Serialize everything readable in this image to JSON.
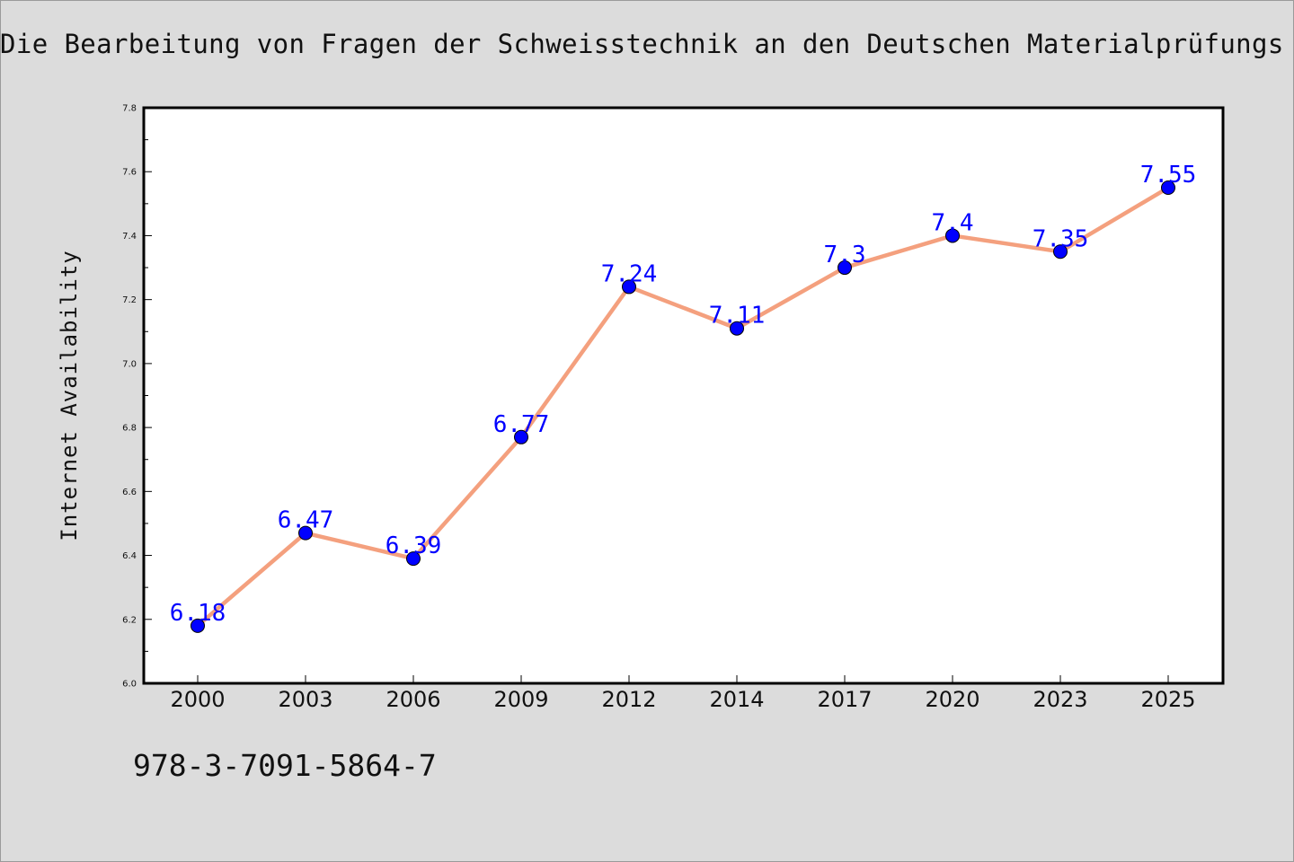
{
  "chart_data": {
    "type": "line",
    "title": "Die Bearbeitung von Fragen der Schweisstechnik an den Deutschen Materialprüfungs",
    "xlabel": "",
    "ylabel": "Internet Availability",
    "categories": [
      "2000",
      "2003",
      "2006",
      "2009",
      "2012",
      "2014",
      "2017",
      "2020",
      "2023",
      "2025"
    ],
    "series": [
      {
        "values": [
          6.18,
          6.47,
          6.39,
          6.77,
          7.24,
          7.11,
          7.3,
          7.4,
          7.35,
          7.55
        ],
        "labels": [
          "6.18",
          "6.47",
          "6.39",
          "6.77",
          "7.24",
          "7.11",
          "7.3",
          "7.4",
          "7.35",
          "7.55"
        ],
        "line_color": "#f4a07e",
        "marker_color": "#0000ff",
        "label_color": "#0000ff"
      }
    ],
    "ylim": [
      6.0,
      7.8
    ],
    "yticks": [
      "6.0",
      "6.2",
      "6.4",
      "6.6",
      "6.8",
      "7.0",
      "7.2",
      "7.4",
      "7.6",
      "7.8"
    ],
    "grid": false,
    "legend": "none"
  },
  "footer": {
    "isbn": "978-3-7091-5864-7"
  }
}
